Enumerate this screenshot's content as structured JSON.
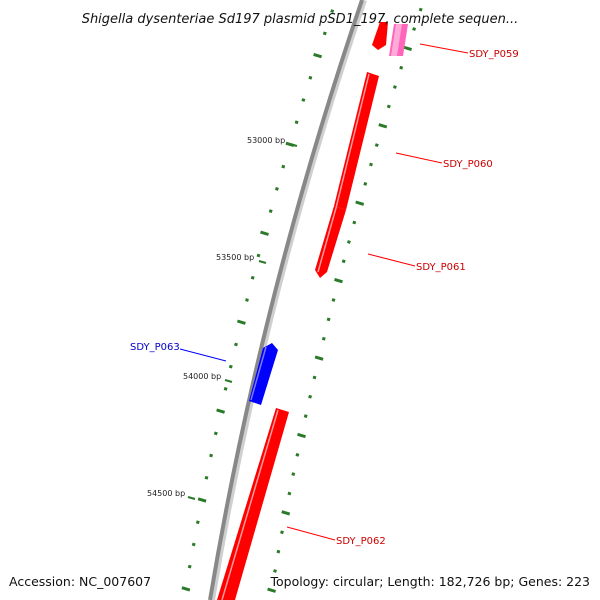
{
  "title": "Shigella dysenteriae Sd197 plasmid pSD1_197, complete sequen...",
  "accession_text": "Accession: NC_007607",
  "summary_text": "Topology: circular; Length: 182,726 bp; Genes: 223",
  "colors": {
    "forward_gene": "#ff0000",
    "reverse_gene": "#0000ff",
    "highlight_gene": "#ff66bb",
    "backbone": "#888888",
    "gc_tick": "#2a7a2a"
  },
  "scale_ticks": [
    {
      "label": "53000 bp"
    },
    {
      "label": "53500 bp"
    },
    {
      "label": "54000 bp"
    },
    {
      "label": "54500 bp"
    }
  ],
  "genes": [
    {
      "label": "SDY_P059",
      "strand": "+"
    },
    {
      "label": "SDY_P060",
      "strand": "+"
    },
    {
      "label": "SDY_P061",
      "strand": "+"
    },
    {
      "label": "SDY_P063",
      "strand": "-"
    },
    {
      "label": "SDY_P062",
      "strand": "+"
    }
  ]
}
